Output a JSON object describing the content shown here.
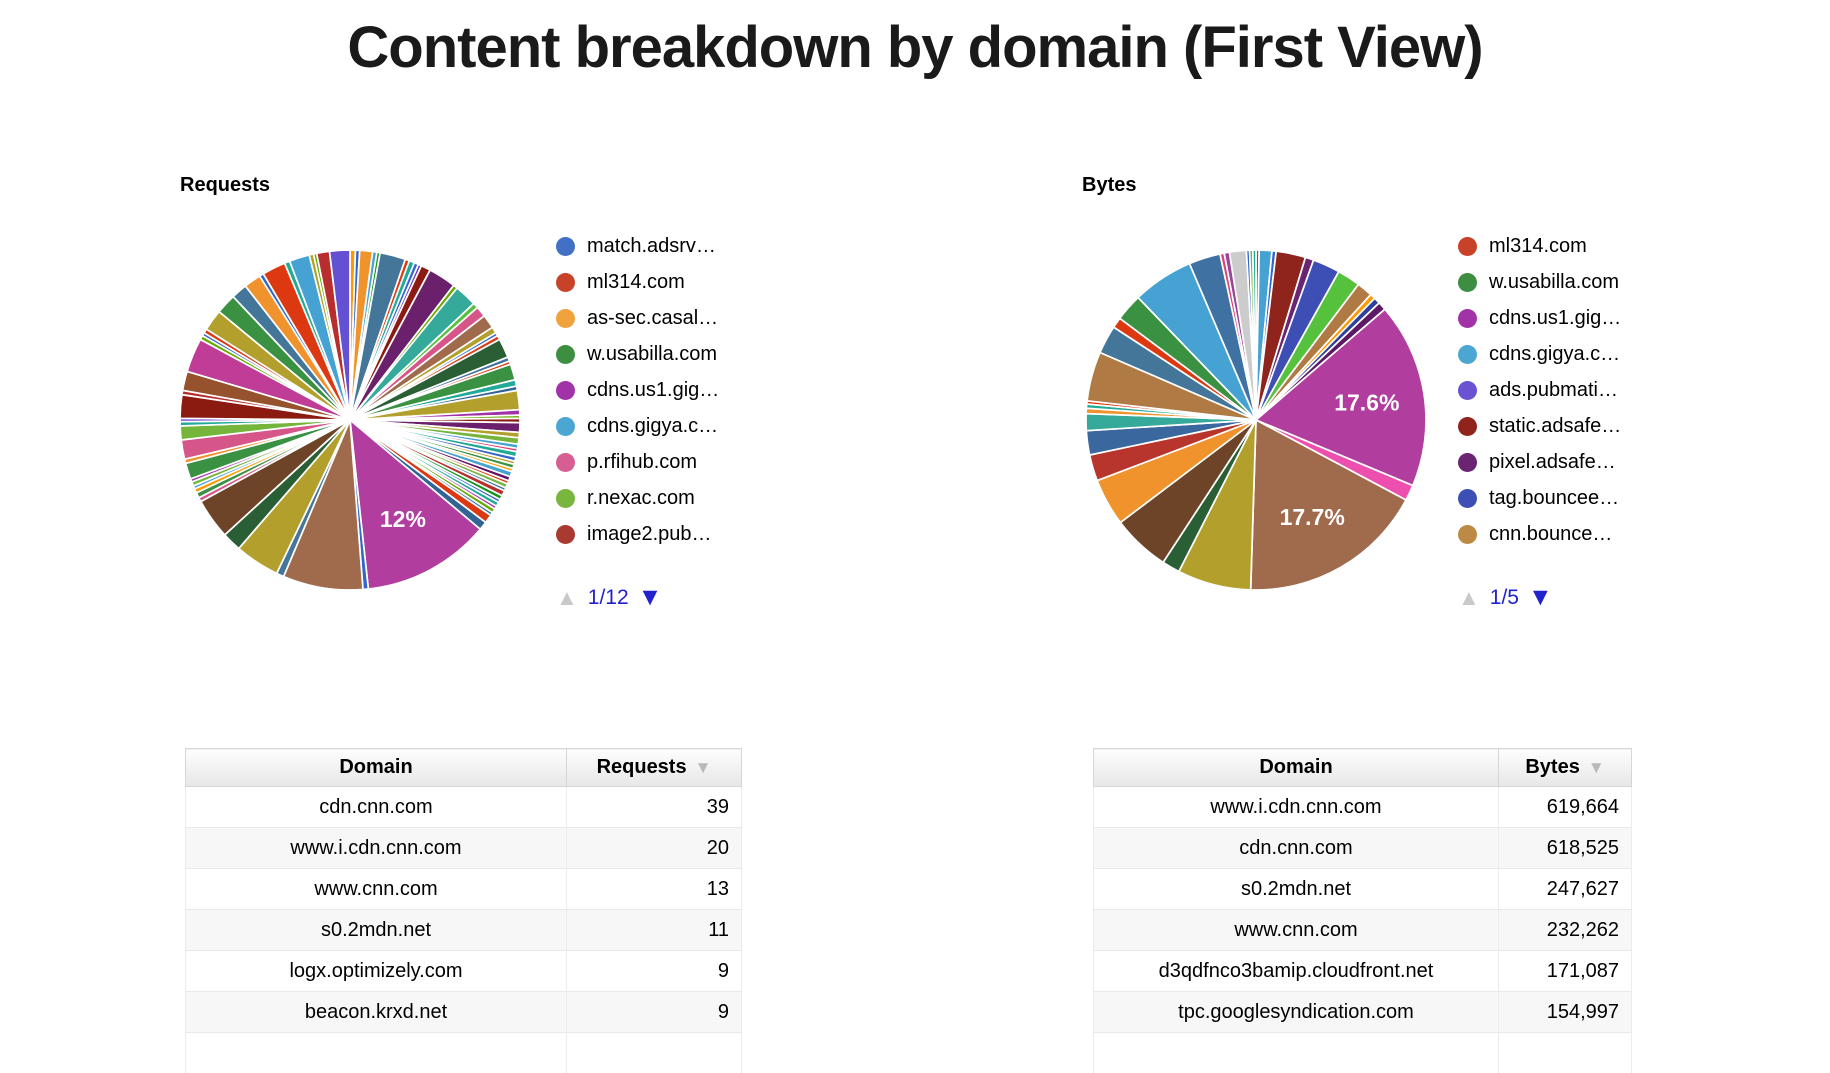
{
  "title": "Content breakdown by domain (First View)",
  "charts": [
    {
      "label": "Requests",
      "pager": {
        "current": "1/12"
      },
      "legend": [
        {
          "label": "match.adsrv…",
          "color": "#4170c4"
        },
        {
          "label": "ml314.com",
          "color": "#c8422a"
        },
        {
          "label": "as-sec.casal…",
          "color": "#f0a23c"
        },
        {
          "label": "w.usabilla.com",
          "color": "#3d8e40"
        },
        {
          "label": "cdns.us1.gig…",
          "color": "#a232a8"
        },
        {
          "label": "cdns.gigya.c…",
          "color": "#4ba6d2"
        },
        {
          "label": "p.rfihub.com",
          "color": "#d75e93"
        },
        {
          "label": "r.nexac.com",
          "color": "#78b63e"
        },
        {
          "label": "image2.pub…",
          "color": "#a83a32"
        }
      ],
      "chart_data": {
        "type": "pie",
        "title": "Requests",
        "legend_position": "right",
        "visible_labels": [
          "12%"
        ],
        "slices": [
          {
            "p": 0.5,
            "c": "#ff9900"
          },
          {
            "p": 0.4,
            "c": "#3366cc"
          },
          {
            "p": 1.2,
            "c": "#f0932c"
          },
          {
            "p": 0.4,
            "c": "#45a2d2"
          },
          {
            "p": 0.3,
            "c": "#109618"
          },
          {
            "p": 2.4,
            "c": "#437699"
          },
          {
            "p": 0.4,
            "c": "#dc3912"
          },
          {
            "p": 0.5,
            "c": "#22aa99"
          },
          {
            "p": 0.4,
            "c": "#3366cc"
          },
          {
            "p": 0.3,
            "c": "#6633cc"
          },
          {
            "p": 0.9,
            "c": "#8b1a10"
          },
          {
            "p": 2.6,
            "c": "#6a206b"
          },
          {
            "p": 0.4,
            "c": "#66aa00"
          },
          {
            "p": 2.1,
            "c": "#35a99a"
          },
          {
            "p": 0.5,
            "c": "#56c13c"
          },
          {
            "p": 1.0,
            "c": "#d7568a"
          },
          {
            "p": 1.3,
            "c": "#a06b4c"
          },
          {
            "p": 0.6,
            "c": "#b3a02c"
          },
          {
            "p": 0.3,
            "c": "#3366cc"
          },
          {
            "p": 0.4,
            "c": "#dc3912"
          },
          {
            "p": 1.8,
            "c": "#2a5e34"
          },
          {
            "p": 0.4,
            "c": "#3f72a3"
          },
          {
            "p": 0.3,
            "c": "#dc3912"
          },
          {
            "p": 1.5,
            "c": "#3a9142"
          },
          {
            "p": 0.6,
            "c": "#22aa99"
          },
          {
            "p": 0.4,
            "c": "#316395"
          },
          {
            "p": 1.8,
            "c": "#b3a02c"
          },
          {
            "p": 0.5,
            "c": "#a232a8"
          },
          {
            "p": 0.3,
            "c": "#66aa00"
          },
          {
            "p": 0.4,
            "c": "#8b1a10"
          },
          {
            "p": 0.9,
            "c": "#6a206b"
          },
          {
            "p": 0.5,
            "c": "#b3a02c"
          },
          {
            "p": 0.6,
            "c": "#76b53c"
          },
          {
            "p": 0.4,
            "c": "#45a2d2"
          },
          {
            "p": 0.3,
            "c": "#dd4477"
          },
          {
            "p": 0.5,
            "c": "#22aa99"
          },
          {
            "p": 0.4,
            "c": "#3366cc"
          },
          {
            "p": 0.3,
            "c": "#b3a02c"
          },
          {
            "p": 0.4,
            "c": "#3a9142"
          },
          {
            "p": 0.3,
            "c": "#ff9900"
          },
          {
            "p": 0.5,
            "c": "#45a2d2"
          },
          {
            "p": 0.4,
            "c": "#651067"
          },
          {
            "p": 0.3,
            "c": "#dc3912"
          },
          {
            "p": 0.4,
            "c": "#76b53c"
          },
          {
            "p": 0.3,
            "c": "#437699"
          },
          {
            "p": 0.5,
            "c": "#b82e2e"
          },
          {
            "p": 0.4,
            "c": "#109618"
          },
          {
            "p": 0.3,
            "c": "#3366cc"
          },
          {
            "p": 0.4,
            "c": "#22aa99"
          },
          {
            "p": 0.3,
            "c": "#a232a8"
          },
          {
            "p": 0.4,
            "c": "#66aa00"
          },
          {
            "p": 0.3,
            "c": "#3f72a3"
          },
          {
            "p": 0.8,
            "c": "#dc3912"
          },
          {
            "p": 0.8,
            "c": "#316395"
          },
          {
            "p": 12.0,
            "c": "#b13d9e",
            "label": "12%"
          },
          {
            "p": 0.5,
            "c": "#3366cc"
          },
          {
            "p": 7.5,
            "c": "#a06b4c"
          },
          {
            "p": 0.7,
            "c": "#437699"
          },
          {
            "p": 4.2,
            "c": "#b3a02c"
          },
          {
            "p": 1.8,
            "c": "#2a5e34"
          },
          {
            "p": 3.8,
            "c": "#6d4428"
          },
          {
            "p": 0.4,
            "c": "#d7568a"
          },
          {
            "p": 0.5,
            "c": "#3a9142"
          },
          {
            "p": 0.4,
            "c": "#ff9900"
          },
          {
            "p": 0.3,
            "c": "#45a2d2"
          },
          {
            "p": 0.4,
            "c": "#76b53c"
          },
          {
            "p": 0.3,
            "c": "#a232a8"
          },
          {
            "p": 1.5,
            "c": "#3a9142"
          },
          {
            "p": 0.4,
            "c": "#f0932c"
          },
          {
            "p": 1.8,
            "c": "#d7568a"
          },
          {
            "p": 1.3,
            "c": "#76b53c"
          },
          {
            "p": 0.4,
            "c": "#22aa99"
          },
          {
            "p": 0.3,
            "c": "#6633cc"
          },
          {
            "p": 2.2,
            "c": "#8b1a10"
          },
          {
            "p": 0.4,
            "c": "#b82e2e"
          },
          {
            "p": 1.8,
            "c": "#96522d"
          },
          {
            "p": 3.2,
            "c": "#bf3d96"
          },
          {
            "p": 0.4,
            "c": "#66aa00"
          },
          {
            "p": 0.3,
            "c": "#3366cc"
          },
          {
            "p": 0.4,
            "c": "#dc3912"
          },
          {
            "p": 2.0,
            "c": "#b3a02c"
          },
          {
            "p": 1.9,
            "c": "#3a9142"
          },
          {
            "p": 1.5,
            "c": "#437699"
          },
          {
            "p": 1.6,
            "c": "#f0932c"
          },
          {
            "p": 0.4,
            "c": "#3366cc"
          },
          {
            "p": 2.2,
            "c": "#dc3912"
          },
          {
            "p": 0.5,
            "c": "#22aa99"
          },
          {
            "p": 1.9,
            "c": "#45a2d2"
          },
          {
            "p": 0.4,
            "c": "#b3a02c"
          },
          {
            "p": 0.3,
            "c": "#66aa00"
          },
          {
            "p": 1.2,
            "c": "#b82e2e"
          },
          {
            "p": 1.9,
            "c": "#6350d2"
          }
        ]
      }
    },
    {
      "label": "Bytes",
      "pager": {
        "current": "1/5"
      },
      "legend": [
        {
          "label": "ml314.com",
          "color": "#c8422a"
        },
        {
          "label": "w.usabilla.com",
          "color": "#3d8e40"
        },
        {
          "label": "cdns.us1.gig…",
          "color": "#a232a8"
        },
        {
          "label": "cdns.gigya.c…",
          "color": "#4ba6d2"
        },
        {
          "label": "ads.pubmati…",
          "color": "#6a52d2"
        },
        {
          "label": "static.adsafe…",
          "color": "#8e241c"
        },
        {
          "label": "pixel.adsafe…",
          "color": "#6a2472"
        },
        {
          "label": "tag.bouncee…",
          "color": "#3d4fb5"
        },
        {
          "label": "cnn.bounce…",
          "color": "#bd8a46"
        }
      ],
      "chart_data": {
        "type": "pie",
        "title": "Bytes",
        "legend_position": "right",
        "visible_labels": [
          "17.6%",
          "17.7%"
        ],
        "slices": [
          {
            "p": 0.3,
            "c": "#dc3912"
          },
          {
            "p": 1.2,
            "c": "#45a2d2"
          },
          {
            "p": 0.4,
            "c": "#3366cc"
          },
          {
            "p": 2.8,
            "c": "#8e241c"
          },
          {
            "p": 0.8,
            "c": "#6a2472"
          },
          {
            "p": 2.6,
            "c": "#3d4fb5"
          },
          {
            "p": 2.2,
            "c": "#56c13c"
          },
          {
            "p": 1.5,
            "c": "#b07a45"
          },
          {
            "p": 0.5,
            "c": "#ff9900"
          },
          {
            "p": 0.6,
            "c": "#2f3f9e"
          },
          {
            "p": 0.8,
            "c": "#5c1a66"
          },
          {
            "p": 17.6,
            "c": "#b13d9e",
            "label": "17.6%"
          },
          {
            "p": 1.5,
            "c": "#ec4fad"
          },
          {
            "p": 17.7,
            "c": "#a06b4c",
            "label": "17.7%"
          },
          {
            "p": 7.0,
            "c": "#b3a02c"
          },
          {
            "p": 1.7,
            "c": "#2a5e34"
          },
          {
            "p": 5.5,
            "c": "#6d4428"
          },
          {
            "p": 4.5,
            "c": "#f0932c"
          },
          {
            "p": 2.5,
            "c": "#b8352e"
          },
          {
            "p": 2.3,
            "c": "#39679e"
          },
          {
            "p": 1.6,
            "c": "#35a99a"
          },
          {
            "p": 0.5,
            "c": "#f0932c"
          },
          {
            "p": 0.4,
            "c": "#22aa99"
          },
          {
            "p": 0.3,
            "c": "#dc3912"
          },
          {
            "p": 4.7,
            "c": "#b07a45"
          },
          {
            "p": 2.7,
            "c": "#437699"
          },
          {
            "p": 1.0,
            "c": "#dc3912"
          },
          {
            "p": 2.6,
            "c": "#3a9142"
          },
          {
            "p": 5.8,
            "c": "#45a2d2"
          },
          {
            "p": 3.0,
            "c": "#3f72a3"
          },
          {
            "p": 0.4,
            "c": "#dd4477"
          },
          {
            "p": 0.5,
            "c": "#994499"
          },
          {
            "p": 1.6,
            "c": "#cccccc"
          },
          {
            "p": 0.3,
            "c": "#3366cc"
          },
          {
            "p": 0.3,
            "c": "#76b53c"
          },
          {
            "p": 0.3,
            "c": "#22aa99"
          }
        ]
      }
    }
  ],
  "tables": [
    {
      "columns": [
        "Domain",
        "Requests"
      ],
      "sorted_column": "Requests",
      "rows": [
        {
          "domain": "cdn.cnn.com",
          "value": "39"
        },
        {
          "domain": "www.i.cdn.cnn.com",
          "value": "20"
        },
        {
          "domain": "www.cnn.com",
          "value": "13"
        },
        {
          "domain": "s0.2mdn.net",
          "value": "11"
        },
        {
          "domain": "logx.optimizely.com",
          "value": "9"
        },
        {
          "domain": "beacon.krxd.net",
          "value": "9"
        }
      ]
    },
    {
      "columns": [
        "Domain",
        "Bytes"
      ],
      "sorted_column": "Bytes",
      "rows": [
        {
          "domain": "www.i.cdn.cnn.com",
          "value": "619,664"
        },
        {
          "domain": "cdn.cnn.com",
          "value": "618,525"
        },
        {
          "domain": "s0.2mdn.net",
          "value": "247,627"
        },
        {
          "domain": "www.cnn.com",
          "value": "232,262"
        },
        {
          "domain": "d3qdfnco3bamip.cloudfront.net",
          "value": "171,087"
        },
        {
          "domain": "tpc.googlesyndication.com",
          "value": "154,997"
        }
      ]
    }
  ]
}
